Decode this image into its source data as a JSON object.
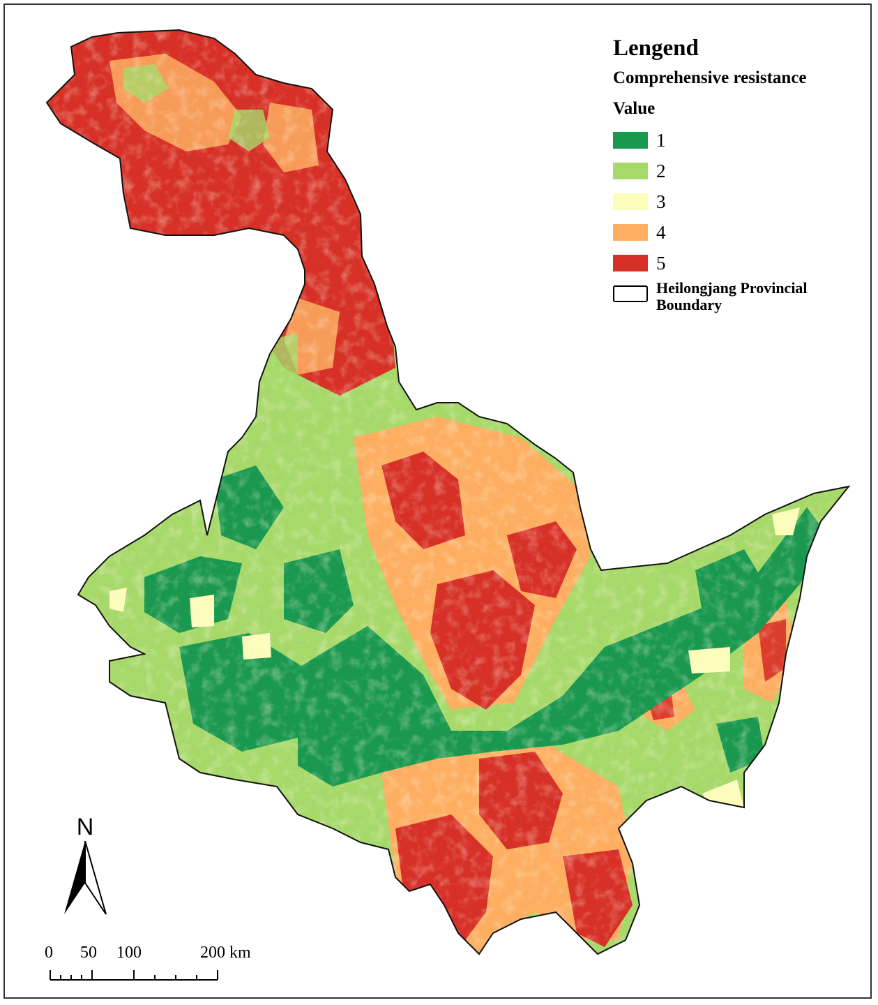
{
  "legend": {
    "title": "Lengend",
    "subtitle": "Comprehensive resistance",
    "field": "Value",
    "classes": [
      {
        "label": "1",
        "color": "#1a9850"
      },
      {
        "label": "2",
        "color": "#a6d96a"
      },
      {
        "label": "3",
        "color": "#fdfdbb"
      },
      {
        "label": "4",
        "color": "#fdae61"
      },
      {
        "label": "5",
        "color": "#d73027"
      }
    ],
    "boundary_label": "Heilongjang Provincial Boundary"
  },
  "north_arrow": {
    "letter": "N"
  },
  "scale_bar": {
    "labels": [
      "0",
      "50",
      "100",
      "200 km"
    ]
  }
}
